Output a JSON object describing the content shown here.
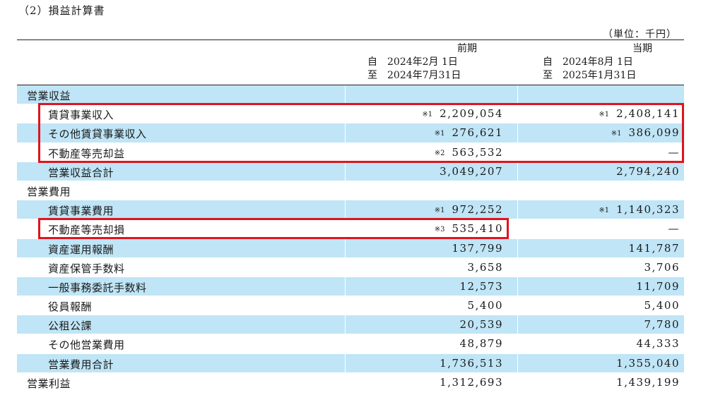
{
  "title": "（2）損益計算書",
  "unit": "（単位：千円）",
  "columns": [
    {
      "period": "前期",
      "from": "自　2024年2月 1日",
      "to": "至　2024年7月31日"
    },
    {
      "period": "当期",
      "from": "自　2024年8月 1日",
      "to": "至　2025年1月31日"
    }
  ],
  "rows": [
    {
      "label": "営業収益",
      "level": 0,
      "shaded": true,
      "v1": "",
      "n1": "",
      "v2": "",
      "n2": ""
    },
    {
      "label": "賃貸事業収入",
      "level": 1,
      "shaded": false,
      "v1": "2,209,054",
      "n1": "※1",
      "v2": "2,408,141",
      "n2": "※1"
    },
    {
      "label": "その他賃貸事業収入",
      "level": 1,
      "shaded": true,
      "v1": "276,621",
      "n1": "※1",
      "v2": "386,099",
      "n2": "※1"
    },
    {
      "label": "不動産等売却益",
      "level": 1,
      "shaded": false,
      "v1": "563,532",
      "n1": "※2",
      "v2": "—",
      "n2": ""
    },
    {
      "label": "営業収益合計",
      "level": 1,
      "shaded": true,
      "v1": "3,049,207",
      "n1": "",
      "v2": "2,794,240",
      "n2": ""
    },
    {
      "label": "営業費用",
      "level": 0,
      "shaded": false,
      "v1": "",
      "n1": "",
      "v2": "",
      "n2": ""
    },
    {
      "label": "賃貸事業費用",
      "level": 1,
      "shaded": true,
      "v1": "972,252",
      "n1": "※1",
      "v2": "1,140,323",
      "n2": "※1"
    },
    {
      "label": "不動産等売却損",
      "level": 1,
      "shaded": false,
      "v1": "535,410",
      "n1": "※3",
      "v2": "—",
      "n2": ""
    },
    {
      "label": "資産運用報酬",
      "level": 1,
      "shaded": true,
      "v1": "137,799",
      "n1": "",
      "v2": "141,787",
      "n2": ""
    },
    {
      "label": "資産保管手数料",
      "level": 1,
      "shaded": false,
      "v1": "3,658",
      "n1": "",
      "v2": "3,706",
      "n2": ""
    },
    {
      "label": "一般事務委託手数料",
      "level": 1,
      "shaded": true,
      "v1": "12,573",
      "n1": "",
      "v2": "11,709",
      "n2": ""
    },
    {
      "label": "役員報酬",
      "level": 1,
      "shaded": false,
      "v1": "5,400",
      "n1": "",
      "v2": "5,400",
      "n2": ""
    },
    {
      "label": "公租公課",
      "level": 1,
      "shaded": true,
      "v1": "20,539",
      "n1": "",
      "v2": "7,780",
      "n2": ""
    },
    {
      "label": "その他営業費用",
      "level": 1,
      "shaded": false,
      "v1": "48,879",
      "n1": "",
      "v2": "44,333",
      "n2": ""
    },
    {
      "label": "営業費用合計",
      "level": 1,
      "shaded": true,
      "v1": "1,736,513",
      "n1": "",
      "v2": "1,355,040",
      "n2": ""
    },
    {
      "label": "営業利益",
      "level": 0,
      "shaded": false,
      "v1": "1,312,693",
      "n1": "",
      "v2": "1,439,199",
      "n2": ""
    }
  ],
  "colors": {
    "row_shade": "#bfe5f6",
    "highlight_box": "#e0141e"
  }
}
